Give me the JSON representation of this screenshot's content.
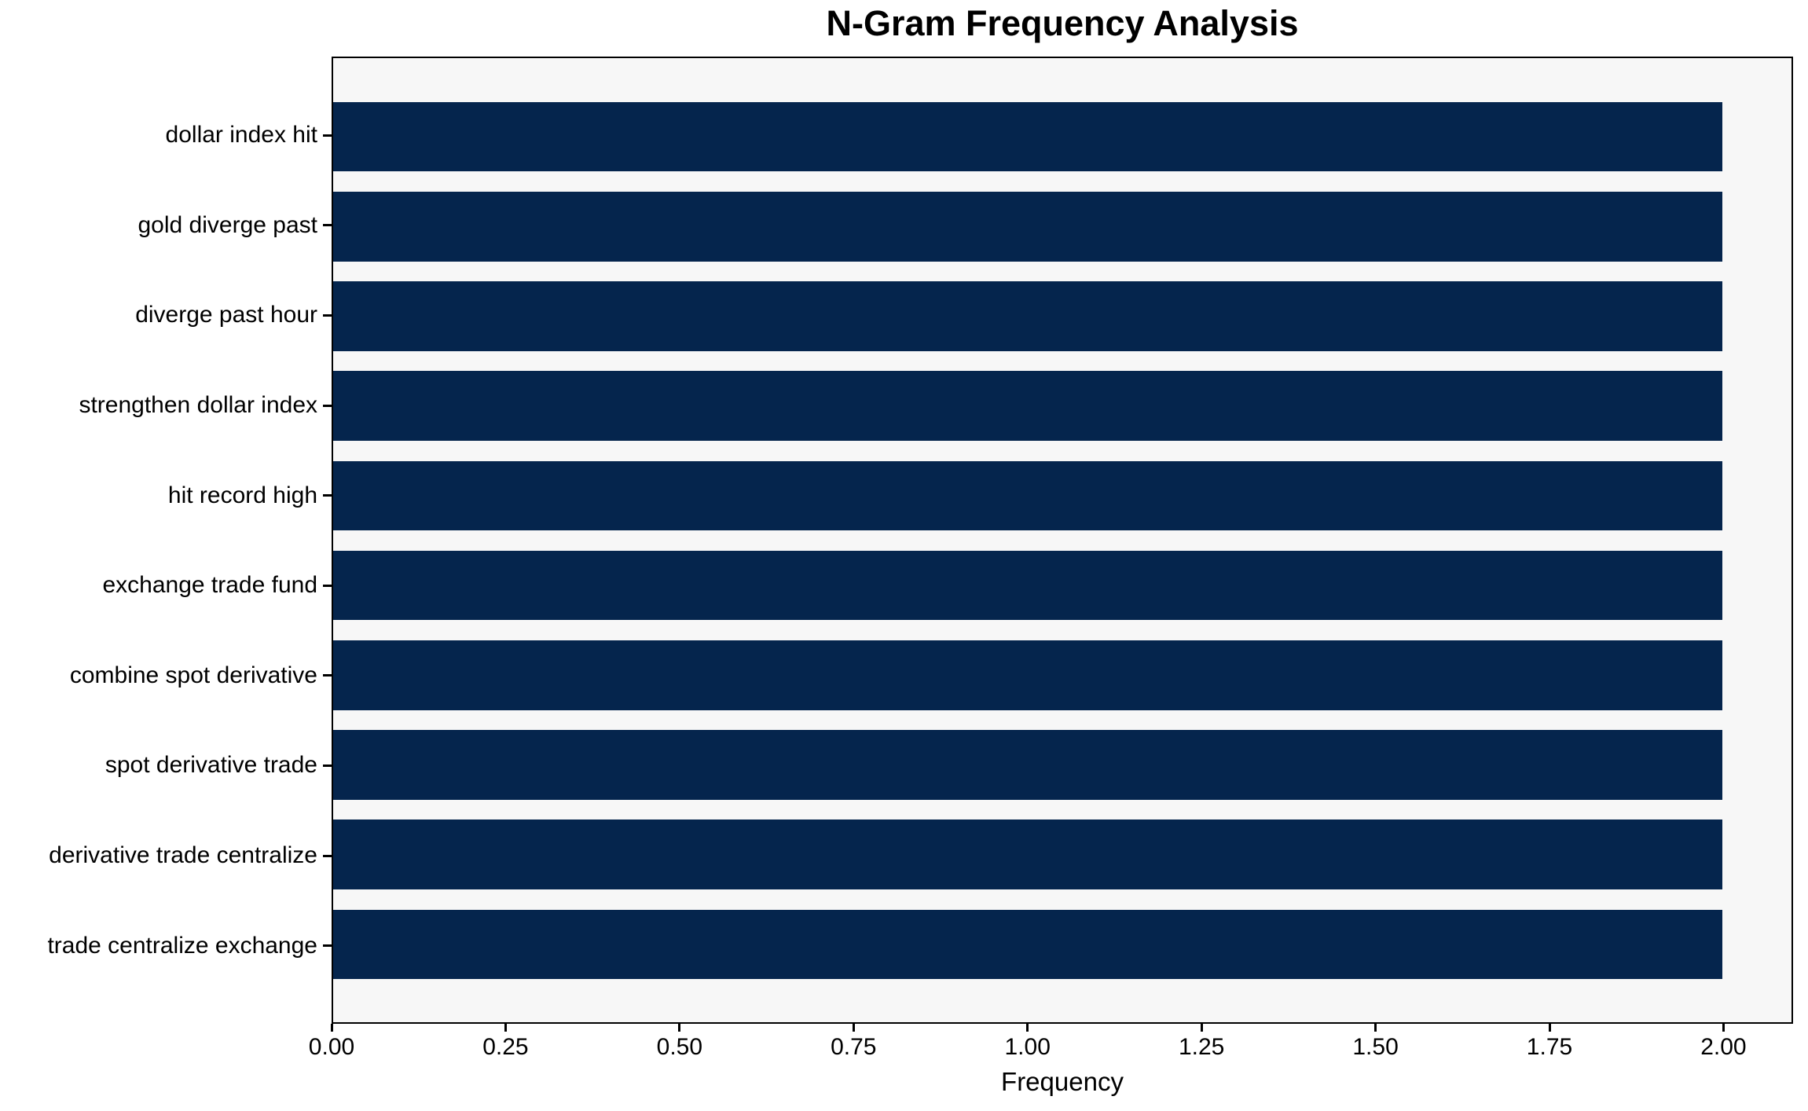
{
  "chart_data": {
    "type": "bar",
    "orientation": "horizontal",
    "title": "N-Gram Frequency Analysis",
    "xlabel": "Frequency",
    "ylabel": "",
    "categories": [
      "dollar index hit",
      "gold diverge past",
      "diverge past hour",
      "strengthen dollar index",
      "hit record high",
      "exchange trade fund",
      "combine spot derivative",
      "spot derivative trade",
      "derivative trade centralize",
      "trade centralize exchange"
    ],
    "values": [
      2,
      2,
      2,
      2,
      2,
      2,
      2,
      2,
      2,
      2
    ],
    "xlim": [
      0,
      2.1
    ],
    "xticks": [
      0,
      0.25,
      0.5,
      0.75,
      1.0,
      1.25,
      1.5,
      1.75,
      2.0
    ],
    "xtick_labels": [
      "0.00",
      "0.25",
      "0.50",
      "0.75",
      "1.00",
      "1.25",
      "1.50",
      "1.75",
      "2.00"
    ],
    "grid": false,
    "legend": null,
    "colors": {
      "bar": "#05254d",
      "plot_background": "#f7f7f7",
      "figure_background": "#ffffff",
      "spine": "#000000",
      "text": "#000000"
    }
  }
}
